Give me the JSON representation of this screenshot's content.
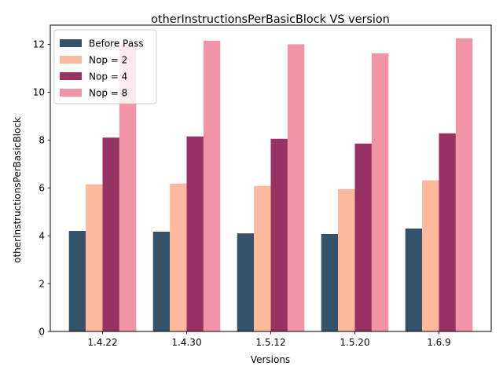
{
  "chart_data": {
    "type": "bar",
    "title": "otherInstructionsPerBasicBlock VS version",
    "xlabel": "Versions",
    "ylabel": "otherInstructionsPerBasicBlock",
    "categories": [
      "1.4.22",
      "1.4.30",
      "1.5.12",
      "1.5.20",
      "1.6.9"
    ],
    "ylim": [
      0,
      12.8
    ],
    "yticks": [
      0,
      2,
      4,
      6,
      8,
      10,
      12
    ],
    "grid": false,
    "legend_position": "top-left",
    "series": [
      {
        "name": "Before Pass",
        "color": "#34526a",
        "values": [
          4.2,
          4.17,
          4.1,
          4.07,
          4.3
        ]
      },
      {
        "name": "Nop = 2",
        "color": "#fcb99e",
        "values": [
          6.15,
          6.18,
          6.08,
          5.95,
          6.32
        ]
      },
      {
        "name": "Nop = 4",
        "color": "#983262",
        "values": [
          8.1,
          8.15,
          8.05,
          7.85,
          8.28
        ]
      },
      {
        "name": "Nop = 8",
        "color": "#f294a8",
        "values": [
          12.0,
          12.15,
          12.0,
          11.62,
          12.25
        ]
      }
    ]
  }
}
